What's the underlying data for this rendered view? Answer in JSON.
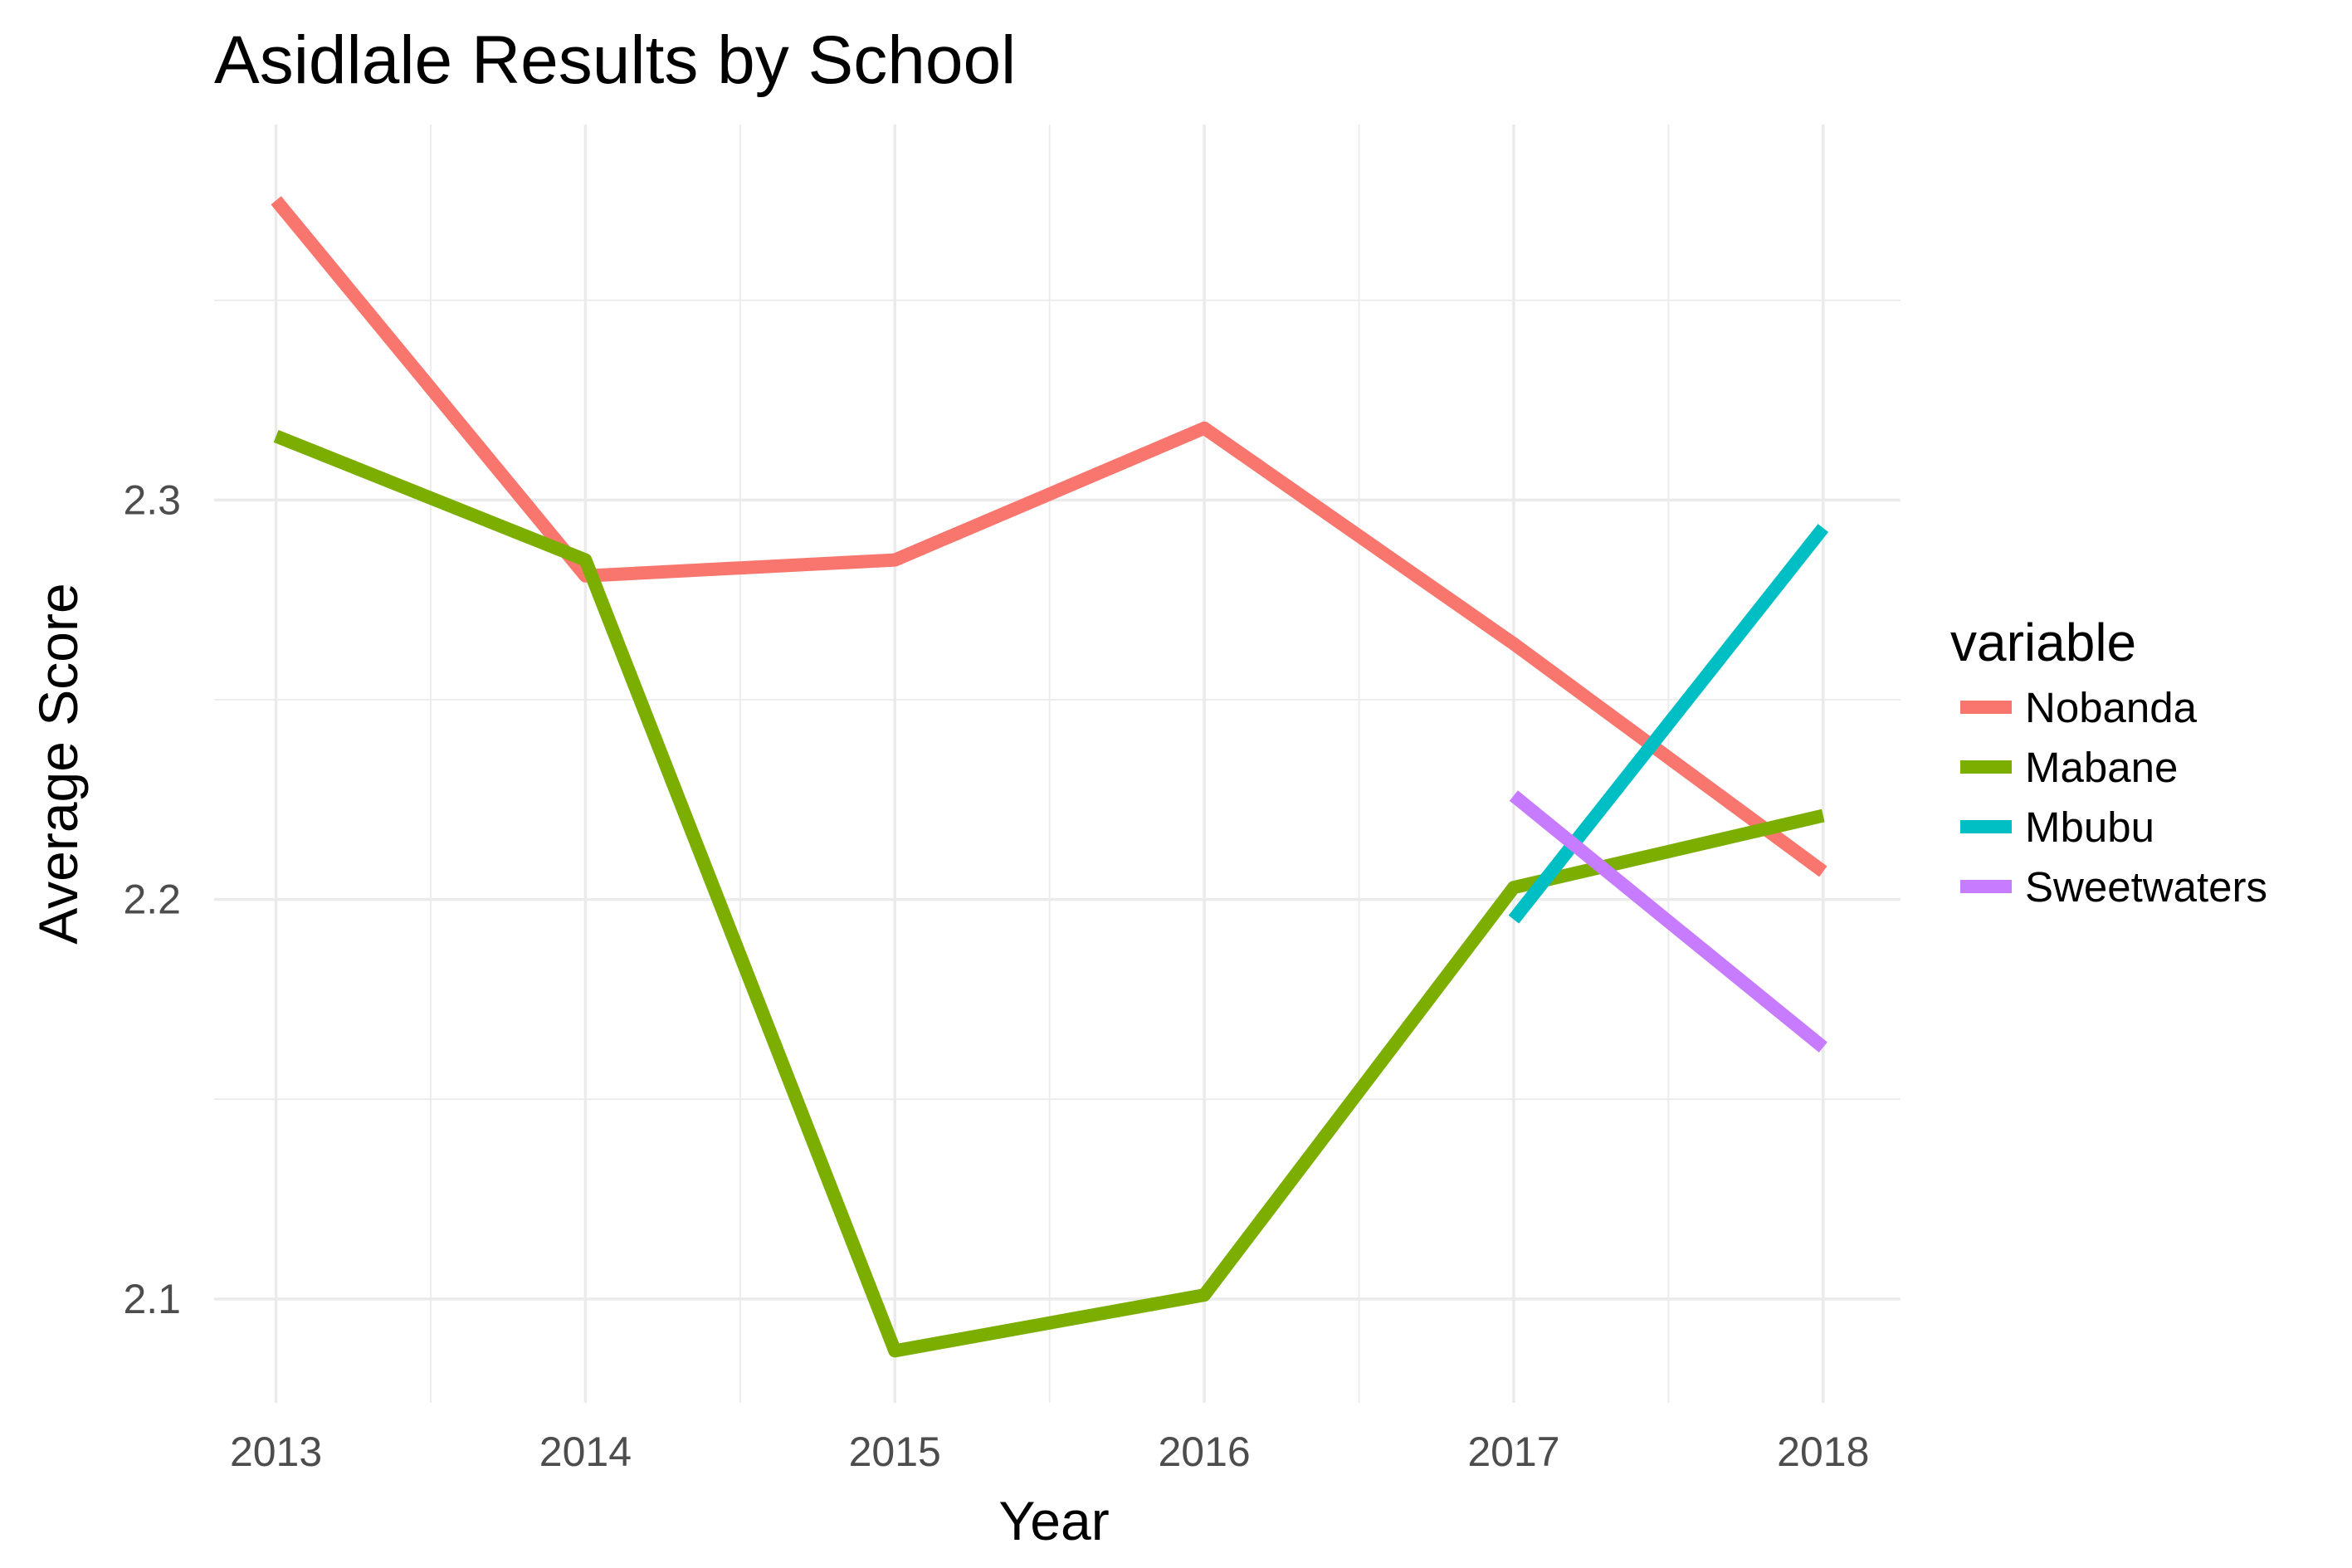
{
  "chart_data": {
    "type": "line",
    "title": "Asidlale Results by School",
    "xlabel": "Year",
    "ylabel": "Average Score",
    "x": [
      2013,
      2014,
      2015,
      2016,
      2017,
      2018
    ],
    "x_ticks": [
      "2013",
      "2014",
      "2015",
      "2016",
      "2017",
      "2018"
    ],
    "y_ticks": [
      "2.1",
      "2.2",
      "2.3"
    ],
    "xlim": [
      2012.8,
      2018.25
    ],
    "ylim": [
      2.074,
      2.394
    ],
    "grid": true,
    "legend": {
      "title": "variable",
      "position": "right"
    },
    "series": [
      {
        "name": "Nobanda",
        "color": "#F8766D",
        "points": [
          [
            2013,
            2.375
          ],
          [
            2014,
            2.281
          ],
          [
            2015,
            2.285
          ],
          [
            2016,
            2.318
          ],
          [
            2017,
            2.264
          ],
          [
            2018,
            2.207
          ]
        ]
      },
      {
        "name": "Mabane",
        "color": "#7CAE00",
        "points": [
          [
            2013,
            2.316
          ],
          [
            2014,
            2.285
          ],
          [
            2015,
            2.087
          ],
          [
            2016,
            2.101
          ],
          [
            2017,
            2.203
          ],
          [
            2018,
            2.221
          ]
        ]
      },
      {
        "name": "Mbubu",
        "color": "#00BFC4",
        "points": [
          [
            2017,
            2.195
          ],
          [
            2018,
            2.293
          ]
        ]
      },
      {
        "name": "Sweetwaters",
        "color": "#C77CFF",
        "points": [
          [
            2017,
            2.226
          ],
          [
            2018,
            2.163
          ]
        ]
      }
    ]
  }
}
